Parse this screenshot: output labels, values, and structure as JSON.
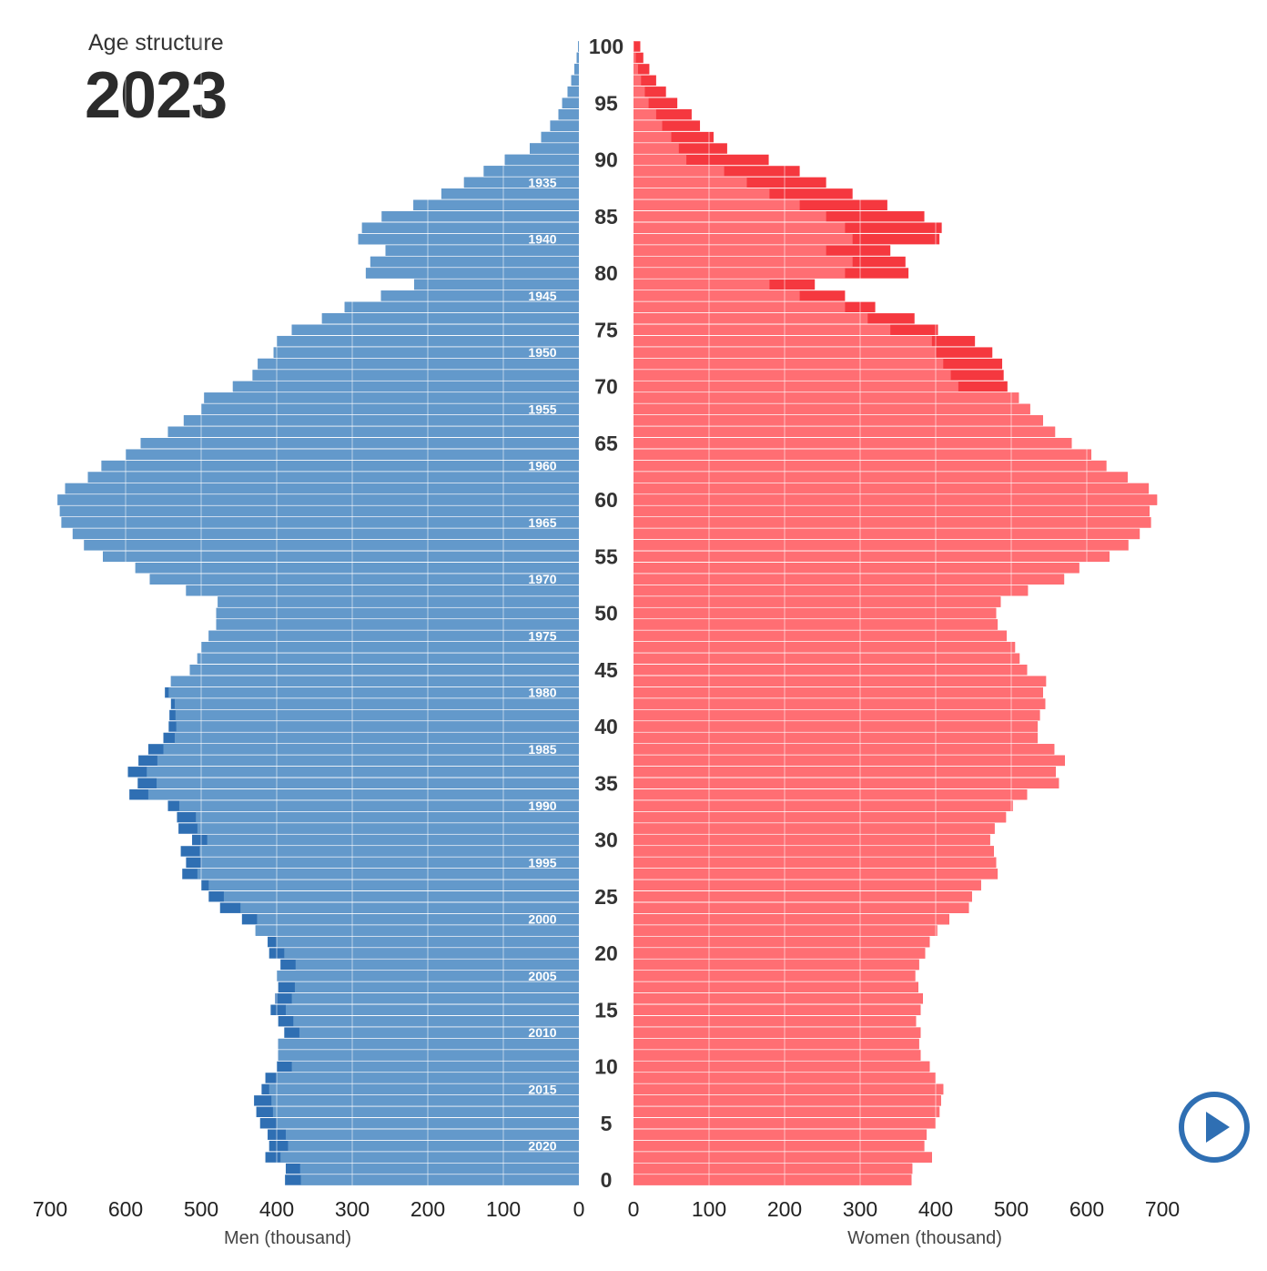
{
  "header": {
    "subtitle": "Age structure",
    "year": "2023"
  },
  "controls": {
    "play_icon": "play-icon"
  },
  "colors": {
    "men": "#6399cb",
    "men_excess": "#2f6fb3",
    "women": "#ff6e73",
    "women_excess": "#f5383f",
    "gridline": "#ffffff",
    "text": "#333333"
  },
  "chart_data": {
    "type": "population-pyramid",
    "xlabel_left": "Men (thousand)",
    "xlabel_right": "Women (thousand)",
    "xlim": [
      0,
      700
    ],
    "x_ticks": [
      0,
      100,
      200,
      300,
      400,
      500,
      600,
      700
    ],
    "age_ticks": [
      0,
      5,
      10,
      15,
      20,
      25,
      30,
      35,
      40,
      45,
      50,
      55,
      60,
      65,
      70,
      75,
      80,
      85,
      90,
      95,
      100
    ],
    "birth_year_ticks": [
      1935,
      1940,
      1945,
      1950,
      1955,
      1960,
      1965,
      1970,
      1975,
      1980,
      1985,
      1990,
      1995,
      2000,
      2005,
      2010,
      2015,
      2020
    ],
    "ages": [
      0,
      1,
      2,
      3,
      4,
      5,
      6,
      7,
      8,
      9,
      10,
      11,
      12,
      13,
      14,
      15,
      16,
      17,
      18,
      19,
      20,
      21,
      22,
      23,
      24,
      25,
      26,
      27,
      28,
      29,
      30,
      31,
      32,
      33,
      34,
      35,
      36,
      37,
      38,
      39,
      40,
      41,
      42,
      43,
      44,
      45,
      46,
      47,
      48,
      49,
      50,
      51,
      52,
      53,
      54,
      55,
      56,
      57,
      58,
      59,
      60,
      61,
      62,
      63,
      64,
      65,
      66,
      67,
      68,
      69,
      70,
      71,
      72,
      73,
      74,
      75,
      76,
      77,
      78,
      79,
      80,
      81,
      82,
      83,
      84,
      85,
      86,
      87,
      88,
      89,
      90,
      91,
      92,
      93,
      94,
      95,
      96,
      97,
      98,
      99,
      100
    ],
    "series": [
      {
        "name": "Men (thousand)",
        "values": [
          389,
          388,
          415,
          410,
          412,
          422,
          427,
          430,
          420,
          415,
          400,
          398,
          398,
          390,
          398,
          408,
          402,
          398,
          400,
          395,
          410,
          412,
          428,
          446,
          475,
          490,
          500,
          525,
          520,
          527,
          512,
          530,
          532,
          544,
          595,
          584,
          597,
          583,
          570,
          550,
          543,
          542,
          540,
          548,
          540,
          515,
          505,
          500,
          490,
          480,
          480,
          478,
          520,
          568,
          587,
          630,
          655,
          670,
          685,
          687,
          690,
          680,
          650,
          632,
          600,
          580,
          544,
          523,
          500,
          496,
          458,
          432,
          425,
          404,
          400,
          380,
          340,
          310,
          262,
          218,
          282,
          276,
          256,
          292,
          287,
          261,
          219,
          182,
          152,
          126,
          98,
          65,
          50,
          38,
          27,
          22,
          15,
          10,
          6,
          3,
          1
        ]
      },
      {
        "name": "Women (thousand)",
        "values": [
          368,
          369,
          395,
          385,
          388,
          400,
          405,
          407,
          410,
          400,
          392,
          380,
          378,
          380,
          374,
          380,
          383,
          377,
          373,
          378,
          386,
          392,
          402,
          418,
          444,
          448,
          460,
          482,
          480,
          477,
          472,
          478,
          493,
          502,
          521,
          563,
          559,
          571,
          557,
          535,
          535,
          538,
          545,
          542,
          546,
          521,
          511,
          505,
          494,
          482,
          480,
          486,
          522,
          570,
          590,
          630,
          655,
          670,
          685,
          683,
          693,
          682,
          654,
          626,
          606,
          580,
          558,
          542,
          525,
          510,
          495,
          490,
          488,
          475,
          452,
          403,
          372,
          320,
          280,
          240,
          364,
          360,
          340,
          405,
          408,
          385,
          336,
          290,
          255,
          220,
          179,
          124,
          106,
          88,
          77,
          58,
          43,
          30,
          21,
          13,
          9
        ]
      },
      {
        "name": "Excess men",
        "values": [
          21,
          19,
          20,
          25,
          24,
          22,
          22,
          22,
          13,
          8,
          20,
          0,
          0,
          20,
          20,
          20,
          22,
          22,
          0,
          20,
          20,
          12,
          0,
          20,
          27,
          20,
          10,
          20,
          20,
          25,
          20,
          25,
          25,
          15,
          25,
          25,
          25,
          25,
          20,
          15,
          10,
          8,
          5,
          5,
          0,
          0,
          0,
          0,
          0,
          0,
          0,
          0,
          0,
          0,
          0,
          0,
          0,
          0,
          0,
          0,
          0,
          0,
          0,
          0,
          0,
          0,
          0,
          0,
          0,
          0,
          0,
          0,
          0,
          0,
          0,
          0,
          0,
          0,
          0,
          0,
          0,
          0,
          0,
          0,
          0,
          0,
          0,
          0,
          0,
          0,
          0,
          0,
          0,
          0,
          0,
          0,
          0,
          0,
          0,
          0,
          0
        ]
      },
      {
        "name": "Excess women",
        "values": [
          0,
          0,
          0,
          0,
          0,
          0,
          0,
          0,
          0,
          0,
          0,
          0,
          0,
          0,
          0,
          0,
          0,
          0,
          0,
          0,
          0,
          0,
          0,
          0,
          0,
          0,
          0,
          0,
          0,
          0,
          0,
          0,
          0,
          0,
          0,
          0,
          0,
          0,
          0,
          0,
          0,
          0,
          0,
          0,
          0,
          0,
          0,
          0,
          0,
          0,
          0,
          0,
          0,
          0,
          0,
          0,
          0,
          0,
          0,
          0,
          0,
          0,
          0,
          0,
          0,
          0,
          0,
          0,
          0,
          0,
          0,
          0,
          0,
          0,
          0,
          0,
          0,
          0,
          0,
          0,
          0,
          0,
          0,
          0,
          0,
          0,
          0,
          0,
          0,
          0,
          0,
          0,
          0,
          0,
          0,
          0,
          0,
          0,
          0,
          0,
          0
        ]
      }
    ],
    "men_solid": [
      368,
      369,
      395,
      385,
      388,
      400,
      405,
      407,
      410,
      400,
      380,
      398,
      398,
      370,
      378,
      388,
      380,
      376,
      400,
      375,
      390,
      400,
      428,
      426,
      448,
      470,
      490,
      505,
      500,
      502,
      492,
      505,
      507,
      529,
      570,
      559,
      572,
      558,
      550,
      535,
      533,
      534,
      535,
      543,
      540,
      515,
      505,
      500,
      490,
      480,
      480,
      478,
      520,
      568,
      587,
      630,
      655,
      670,
      685,
      687,
      690,
      680,
      650,
      632,
      600,
      580,
      544,
      523,
      500,
      496,
      458,
      432,
      425,
      404,
      400,
      380,
      340,
      310,
      262,
      218,
      282,
      276,
      256,
      292,
      287,
      261,
      219,
      182,
      152,
      126,
      98,
      65,
      50,
      38,
      27,
      22,
      15,
      10,
      6,
      3,
      1
    ],
    "women_solid": [
      368,
      369,
      395,
      385,
      388,
      400,
      405,
      407,
      410,
      400,
      392,
      380,
      378,
      380,
      374,
      380,
      383,
      377,
      373,
      378,
      386,
      392,
      402,
      418,
      444,
      448,
      460,
      482,
      480,
      477,
      472,
      478,
      493,
      502,
      521,
      563,
      559,
      571,
      557,
      535,
      535,
      538,
      545,
      542,
      546,
      521,
      511,
      505,
      494,
      482,
      480,
      486,
      522,
      570,
      590,
      630,
      655,
      670,
      685,
      683,
      693,
      682,
      654,
      626,
      606,
      580,
      558,
      542,
      525,
      510,
      430,
      420,
      410,
      400,
      395,
      340,
      310,
      280,
      220,
      180,
      280,
      290,
      255,
      290,
      280,
      255,
      220,
      180,
      150,
      120,
      70,
      60,
      50,
      38,
      30,
      20,
      15,
      10,
      6,
      3,
      1
    ]
  }
}
